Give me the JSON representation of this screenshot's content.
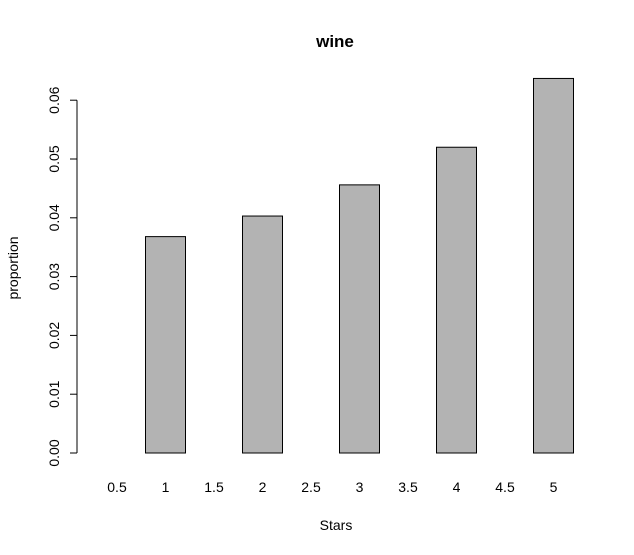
{
  "chart_data": {
    "type": "bar",
    "title": "wine",
    "xlabel": "Stars",
    "ylabel": "proportion",
    "categories": [
      "0.5",
      "1",
      "1.5",
      "2",
      "2.5",
      "3",
      "3.5",
      "4",
      "4.5",
      "5"
    ],
    "values": [
      0.0,
      0.0368,
      0.0,
      0.0403,
      0.0,
      0.0456,
      0.0,
      0.052,
      0.0,
      0.0637
    ],
    "ylim": [
      0,
      0.06
    ],
    "yticks": [
      "0.00",
      "0.01",
      "0.02",
      "0.03",
      "0.04",
      "0.05",
      "0.06"
    ],
    "grid": false,
    "bar_color": "#b3b3b3"
  }
}
